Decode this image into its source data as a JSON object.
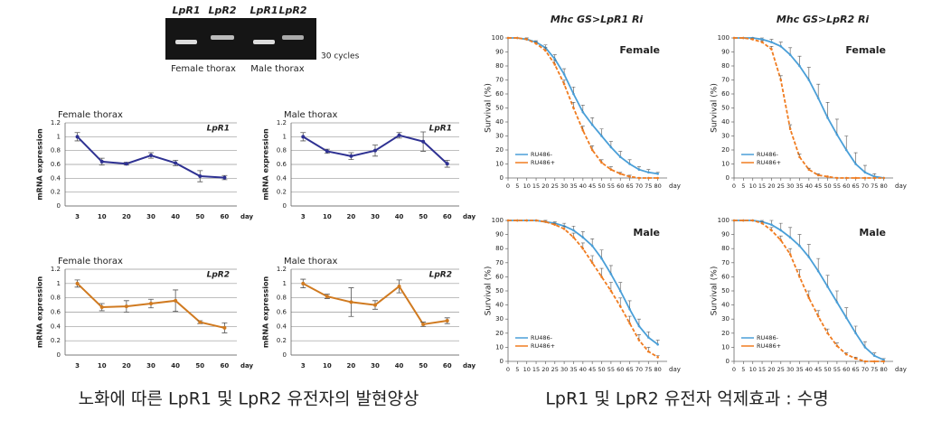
{
  "gel": {
    "lane_labels": [
      "LpR1",
      "LpR2",
      "LpR1",
      "LpR2"
    ],
    "sample_labels": [
      "Female thorax",
      "Male thorax"
    ],
    "cycles": "30 cycles"
  },
  "chart_data": [
    {
      "type": "line",
      "title": "Female thorax",
      "annotation": "LpR1",
      "ylabel": "mRNA expression",
      "xlabel": "day",
      "categories": [
        "3",
        "10",
        "20",
        "30",
        "40",
        "50",
        "60"
      ],
      "values": [
        1.0,
        0.64,
        0.61,
        0.73,
        0.62,
        0.43,
        0.41
      ],
      "errors": [
        0.06,
        0.05,
        0.02,
        0.04,
        0.04,
        0.08,
        0.03
      ],
      "color": "#2e3192",
      "ylim": [
        0,
        1.2
      ],
      "yticks": [
        0,
        0.2,
        0.4,
        0.6,
        0.8,
        1,
        1.2
      ],
      "grid": true
    },
    {
      "type": "line",
      "title": "Male thorax",
      "annotation": "LpR1",
      "ylabel": "mRNA expression",
      "xlabel": "day",
      "categories": [
        "3",
        "10",
        "20",
        "30",
        "40",
        "50",
        "60"
      ],
      "values": [
        1.0,
        0.79,
        0.72,
        0.8,
        1.02,
        0.93,
        0.61
      ],
      "errors": [
        0.06,
        0.03,
        0.05,
        0.08,
        0.04,
        0.14,
        0.05
      ],
      "color": "#2e3192",
      "ylim": [
        0,
        1.2
      ],
      "yticks": [
        0,
        0.2,
        0.4,
        0.6,
        0.8,
        1,
        1.2
      ],
      "grid": true
    },
    {
      "type": "line",
      "title": "Female thorax",
      "annotation": "LpR2",
      "ylabel": "mRNA expression",
      "xlabel": "day",
      "categories": [
        "3",
        "10",
        "20",
        "30",
        "40",
        "50",
        "60"
      ],
      "values": [
        1.0,
        0.67,
        0.68,
        0.72,
        0.76,
        0.46,
        0.38
      ],
      "errors": [
        0.05,
        0.05,
        0.08,
        0.06,
        0.15,
        0.02,
        0.07
      ],
      "color": "#d07a20",
      "ylim": [
        0,
        1.2
      ],
      "yticks": [
        0,
        0.2,
        0.4,
        0.6,
        0.8,
        1,
        1.2
      ],
      "grid": true
    },
    {
      "type": "line",
      "title": "Male thorax",
      "annotation": "LpR2",
      "ylabel": "mRNA expression",
      "xlabel": "day",
      "categories": [
        "3",
        "10",
        "20",
        "30",
        "40",
        "50",
        "60"
      ],
      "values": [
        1.0,
        0.82,
        0.74,
        0.7,
        0.96,
        0.43,
        0.48
      ],
      "errors": [
        0.06,
        0.03,
        0.2,
        0.06,
        0.09,
        0.03,
        0.04
      ],
      "color": "#d07a20",
      "ylim": [
        0,
        1.2
      ],
      "yticks": [
        0,
        0.2,
        0.4,
        0.6,
        0.8,
        1,
        1.2
      ],
      "grid": true
    },
    {
      "type": "survival",
      "title": "Mhc GS>LpR1 Ri",
      "annotation": "Female",
      "ylabel": "Survival (%)",
      "xlabel": "day",
      "legend": "lower left",
      "grid": false,
      "x": [
        0,
        5,
        10,
        15,
        20,
        25,
        30,
        35,
        40,
        45,
        50,
        55,
        60,
        65,
        70,
        75,
        80
      ],
      "xlim": [
        0,
        85
      ],
      "xticks": [
        0,
        5,
        10,
        15,
        20,
        25,
        30,
        35,
        40,
        45,
        50,
        55,
        60,
        65,
        70,
        75,
        80
      ],
      "ylim": [
        0,
        100
      ],
      "yticks": [
        0,
        10,
        20,
        30,
        40,
        50,
        60,
        70,
        80,
        90,
        100
      ],
      "series": [
        {
          "name": "RU486-",
          "color": "#4a9fd8",
          "values": [
            100,
            100,
            99,
            97,
            93,
            85,
            74,
            60,
            47,
            38,
            30,
            22,
            15,
            10,
            6,
            4,
            3
          ],
          "errors": [
            0,
            0,
            1,
            1,
            2,
            3,
            4,
            5,
            5,
            5,
            5,
            4,
            4,
            3,
            2,
            2,
            1
          ]
        },
        {
          "name": "RU486+",
          "color": "#f07c20",
          "values": [
            100,
            100,
            99,
            96,
            91,
            81,
            67,
            50,
            34,
            20,
            11,
            6,
            3,
            1,
            0,
            0,
            0
          ],
          "errors": [
            0,
            0,
            1,
            1,
            2,
            3,
            3,
            4,
            3,
            3,
            2,
            2,
            1,
            1,
            0,
            0,
            0
          ]
        }
      ]
    },
    {
      "type": "survival",
      "title": "Mhc GS>LpR2 Ri",
      "annotation": "Female",
      "ylabel": "Survival (%)",
      "xlabel": "day",
      "legend": "lower left",
      "grid": false,
      "x": [
        0,
        5,
        10,
        15,
        20,
        25,
        30,
        35,
        40,
        45,
        50,
        55,
        60,
        65,
        70,
        75,
        80
      ],
      "xlim": [
        0,
        85
      ],
      "xticks": [
        0,
        5,
        10,
        15,
        20,
        25,
        30,
        35,
        40,
        45,
        50,
        55,
        60,
        65,
        70,
        75,
        80
      ],
      "ylim": [
        0,
        100
      ],
      "yticks": [
        0,
        10,
        20,
        30,
        40,
        50,
        60,
        70,
        80,
        90,
        100
      ],
      "series": [
        {
          "name": "RU486-",
          "color": "#4a9fd8",
          "values": [
            100,
            100,
            100,
            99,
            97,
            94,
            88,
            80,
            70,
            57,
            43,
            31,
            20,
            10,
            4,
            1,
            0
          ],
          "errors": [
            0,
            0,
            0,
            1,
            2,
            3,
            5,
            7,
            9,
            10,
            11,
            11,
            10,
            8,
            5,
            2,
            0
          ]
        },
        {
          "name": "RU486+",
          "color": "#f07c20",
          "values": [
            100,
            100,
            99,
            97,
            92,
            70,
            35,
            15,
            6,
            2,
            1,
            0,
            0,
            0,
            0,
            0,
            0
          ],
          "errors": [
            0,
            0,
            1,
            1,
            2,
            3,
            3,
            2,
            1,
            1,
            0,
            0,
            0,
            0,
            0,
            0,
            0
          ]
        }
      ]
    },
    {
      "type": "survival",
      "annotation": "Male",
      "ylabel": "Survival (%)",
      "xlabel": "day",
      "legend": "lower left",
      "grid": false,
      "x": [
        0,
        5,
        10,
        15,
        20,
        25,
        30,
        35,
        40,
        45,
        50,
        55,
        60,
        65,
        70,
        75,
        80
      ],
      "xlim": [
        0,
        85
      ],
      "xticks": [
        0,
        5,
        10,
        15,
        20,
        25,
        30,
        35,
        40,
        45,
        50,
        55,
        60,
        65,
        70,
        75,
        80
      ],
      "ylim": [
        0,
        100
      ],
      "yticks": [
        0,
        10,
        20,
        30,
        40,
        50,
        60,
        70,
        80,
        90,
        100
      ],
      "series": [
        {
          "name": "RU486-",
          "color": "#4a9fd8",
          "values": [
            100,
            100,
            100,
            100,
            99,
            98,
            96,
            93,
            88,
            82,
            73,
            62,
            50,
            37,
            25,
            17,
            12
          ],
          "errors": [
            0,
            0,
            0,
            0,
            1,
            1,
            2,
            3,
            4,
            5,
            6,
            6,
            6,
            6,
            5,
            4,
            3
          ]
        },
        {
          "name": "RU486+",
          "color": "#f07c20",
          "values": [
            100,
            100,
            100,
            100,
            99,
            97,
            94,
            88,
            80,
            70,
            60,
            50,
            39,
            27,
            15,
            7,
            3
          ],
          "errors": [
            0,
            0,
            0,
            0,
            1,
            1,
            2,
            3,
            4,
            5,
            6,
            6,
            6,
            5,
            4,
            3,
            1
          ]
        }
      ]
    },
    {
      "type": "survival",
      "annotation": "Male",
      "ylabel": "Survival (%)",
      "xlabel": "day",
      "legend": "lower left",
      "grid": false,
      "x": [
        0,
        5,
        10,
        15,
        20,
        25,
        30,
        35,
        40,
        45,
        50,
        55,
        60,
        65,
        70,
        75,
        80
      ],
      "xlim": [
        0,
        85
      ],
      "xticks": [
        0,
        5,
        10,
        15,
        20,
        25,
        30,
        35,
        40,
        45,
        50,
        55,
        60,
        65,
        70,
        75,
        80
      ],
      "ylim": [
        0,
        100
      ],
      "yticks": [
        0,
        10,
        20,
        30,
        40,
        50,
        60,
        70,
        80,
        90,
        100
      ],
      "series": [
        {
          "name": "RU486-",
          "color": "#4a9fd8",
          "values": [
            100,
            100,
            100,
            99,
            97,
            93,
            88,
            82,
            74,
            64,
            53,
            42,
            31,
            20,
            10,
            4,
            1
          ],
          "errors": [
            0,
            0,
            0,
            1,
            3,
            5,
            7,
            8,
            9,
            9,
            8,
            8,
            7,
            5,
            4,
            2,
            1
          ]
        },
        {
          "name": "RU486+",
          "color": "#f07c20",
          "values": [
            100,
            100,
            100,
            98,
            93,
            86,
            76,
            60,
            45,
            32,
            20,
            11,
            5,
            2,
            0,
            0,
            0
          ],
          "errors": [
            0,
            0,
            0,
            1,
            2,
            3,
            4,
            5,
            5,
            4,
            3,
            2,
            1,
            1,
            0,
            0,
            0
          ]
        }
      ]
    }
  ],
  "captions": [
    "노화에 따른 LpR1 및 LpR2 유전자의 발현양상",
    "LpR1 및 LpR2 유전자 억제효과 : 수명"
  ]
}
